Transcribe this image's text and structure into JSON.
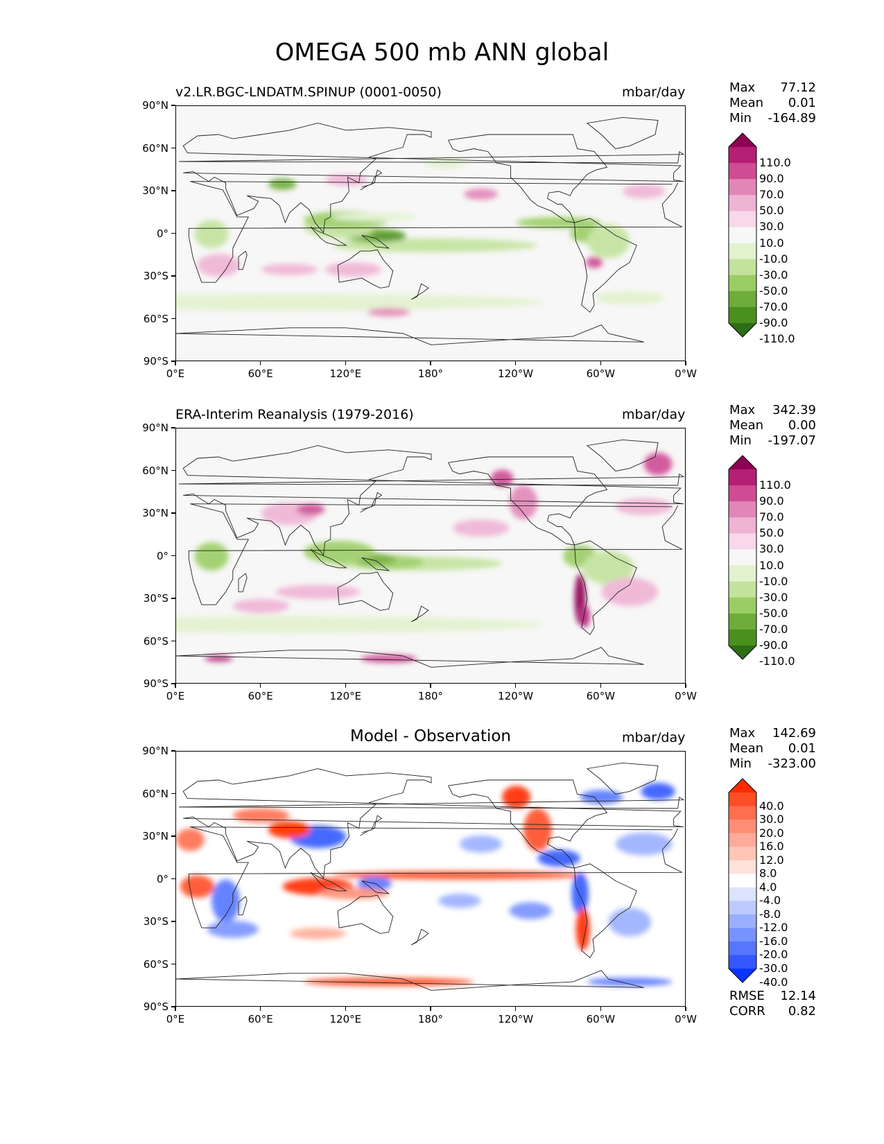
{
  "figure": {
    "title": "OMEGA 500 mb ANN global"
  },
  "chart_data": [
    {
      "type": "heatmap",
      "title": "v2.LR.BGC-LNDATM.SPINUP (0001-0050)",
      "units": "mbar/day",
      "xlabel": "",
      "ylabel": "",
      "x_ticks": [
        "0°E",
        "60°E",
        "120°E",
        "180°",
        "120°W",
        "60°W",
        "0°W"
      ],
      "y_ticks": [
        "90°N",
        "60°N",
        "30°N",
        "0°",
        "30°S",
        "60°S",
        "90°S"
      ],
      "xlim": [
        0,
        360
      ],
      "ylim": [
        -90,
        90
      ],
      "stats": [
        {
          "label": "Max",
          "value": "77.12"
        },
        {
          "label": "Mean",
          "value": "0.01"
        },
        {
          "label": "Min",
          "value": "-164.89"
        }
      ],
      "colorbar": {
        "labels": [
          "110.0",
          "90.0",
          "70.0",
          "50.0",
          "30.0",
          "10.0",
          "-10.0",
          "-30.0",
          "-50.0",
          "-70.0",
          "-90.0",
          "-110.0"
        ],
        "colors": [
          "#8e0152",
          "#b41f74",
          "#cf4c95",
          "#e286b7",
          "#efb3d4",
          "#f8d8ea",
          "#f7f7f7",
          "#e2f2cf",
          "#c2e39c",
          "#9bcd65",
          "#6ead39",
          "#4a901f",
          "#2e6e17"
        ]
      }
    },
    {
      "type": "heatmap",
      "title": "ERA-Interim Reanalysis (1979-2016)",
      "units": "mbar/day",
      "xlabel": "",
      "ylabel": "",
      "x_ticks": [
        "0°E",
        "60°E",
        "120°E",
        "180°",
        "120°W",
        "60°W",
        "0°W"
      ],
      "y_ticks": [
        "90°N",
        "60°N",
        "30°N",
        "0°",
        "30°S",
        "60°S",
        "90°S"
      ],
      "xlim": [
        0,
        360
      ],
      "ylim": [
        -90,
        90
      ],
      "stats": [
        {
          "label": "Max",
          "value": "342.39"
        },
        {
          "label": "Mean",
          "value": "0.00"
        },
        {
          "label": "Min",
          "value": "-197.07"
        }
      ],
      "colorbar": {
        "labels": [
          "110.0",
          "90.0",
          "70.0",
          "50.0",
          "30.0",
          "10.0",
          "-10.0",
          "-30.0",
          "-50.0",
          "-70.0",
          "-90.0",
          "-110.0"
        ],
        "colors": [
          "#8e0152",
          "#b41f74",
          "#cf4c95",
          "#e286b7",
          "#efb3d4",
          "#f8d8ea",
          "#f7f7f7",
          "#e2f2cf",
          "#c2e39c",
          "#9bcd65",
          "#6ead39",
          "#4a901f",
          "#2e6e17"
        ]
      }
    },
    {
      "type": "heatmap",
      "title": "Model - Observation",
      "units": "mbar/day",
      "xlabel": "",
      "ylabel": "",
      "x_ticks": [
        "0°E",
        "60°E",
        "120°E",
        "180°",
        "120°W",
        "60°W",
        "0°W"
      ],
      "y_ticks": [
        "90°N",
        "60°N",
        "30°N",
        "0°",
        "30°S",
        "60°S",
        "90°S"
      ],
      "xlim": [
        0,
        360
      ],
      "ylim": [
        -90,
        90
      ],
      "stats": [
        {
          "label": "Max",
          "value": "142.69"
        },
        {
          "label": "Mean",
          "value": "0.01"
        },
        {
          "label": "Min",
          "value": "-323.00"
        }
      ],
      "metrics": [
        {
          "label": "RMSE",
          "value": "12.14"
        },
        {
          "label": "CORR",
          "value": "0.82"
        }
      ],
      "colorbar": {
        "labels": [
          "40.0",
          "30.0",
          "20.0",
          "16.0",
          "12.0",
          "8.0",
          "4.0",
          "-4.0",
          "-8.0",
          "-12.0",
          "-16.0",
          "-20.0",
          "-30.0",
          "-40.0"
        ],
        "colors": [
          "#ff2a00",
          "#ff4d26",
          "#ff6e4f",
          "#ff8e75",
          "#ffab97",
          "#ffc6b8",
          "#ffe2da",
          "#ffffff",
          "#dce4ff",
          "#bccaff",
          "#9aafff",
          "#7893ff",
          "#5676ff",
          "#3358ff",
          "#0a34ff"
        ]
      }
    }
  ]
}
